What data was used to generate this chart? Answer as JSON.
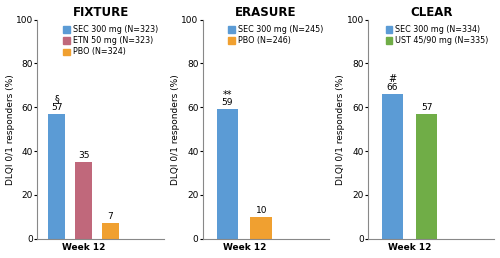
{
  "panels": [
    {
      "title": "FIXTURE",
      "bars": [
        {
          "label": "SEC 300 mg (N=323)",
          "value": 57,
          "color": "#5B9BD5",
          "annotation_sym": "§",
          "annotation_val": "57"
        },
        {
          "label": "ETN 50 mg (N=323)",
          "value": 35,
          "color": "#C0687B",
          "annotation_sym": "",
          "annotation_val": "35"
        },
        {
          "label": "PBO (N=324)",
          "value": 7,
          "color": "#F0A030",
          "annotation_sym": "",
          "annotation_val": "7"
        }
      ],
      "xlabel": "Week 12",
      "ylabel": "DLQI 0/1 responders (%)"
    },
    {
      "title": "ERASURE",
      "bars": [
        {
          "label": "SEC 300 mg (N=245)",
          "value": 59,
          "color": "#5B9BD5",
          "annotation_sym": "**",
          "annotation_val": "59"
        },
        {
          "label": "PBO (N=246)",
          "value": 10,
          "color": "#F0A030",
          "annotation_sym": "",
          "annotation_val": "10"
        }
      ],
      "xlabel": "Week 12",
      "ylabel": "DLQI 0/1 responders (%)"
    },
    {
      "title": "CLEAR",
      "bars": [
        {
          "label": "SEC 300 mg (N=334)",
          "value": 66,
          "color": "#5B9BD5",
          "annotation_sym": "#",
          "annotation_val": "66"
        },
        {
          "label": "UST 45/90 mg (N=335)",
          "value": 57,
          "color": "#70AD47",
          "annotation_sym": "",
          "annotation_val": "57"
        }
      ],
      "xlabel": "Week 12",
      "ylabel": "DLQI 0/1 responders (%)"
    }
  ],
  "ylim": [
    0,
    100
  ],
  "yticks": [
    0,
    20,
    40,
    60,
    80,
    100
  ],
  "background_color": "#FFFFFF",
  "bar_width": 0.35,
  "title_fontsize": 8.5,
  "label_fontsize": 6.5,
  "tick_fontsize": 6.5,
  "annot_fontsize": 6.5,
  "annot_sym_fontsize": 7.0,
  "legend_fontsize": 5.8
}
